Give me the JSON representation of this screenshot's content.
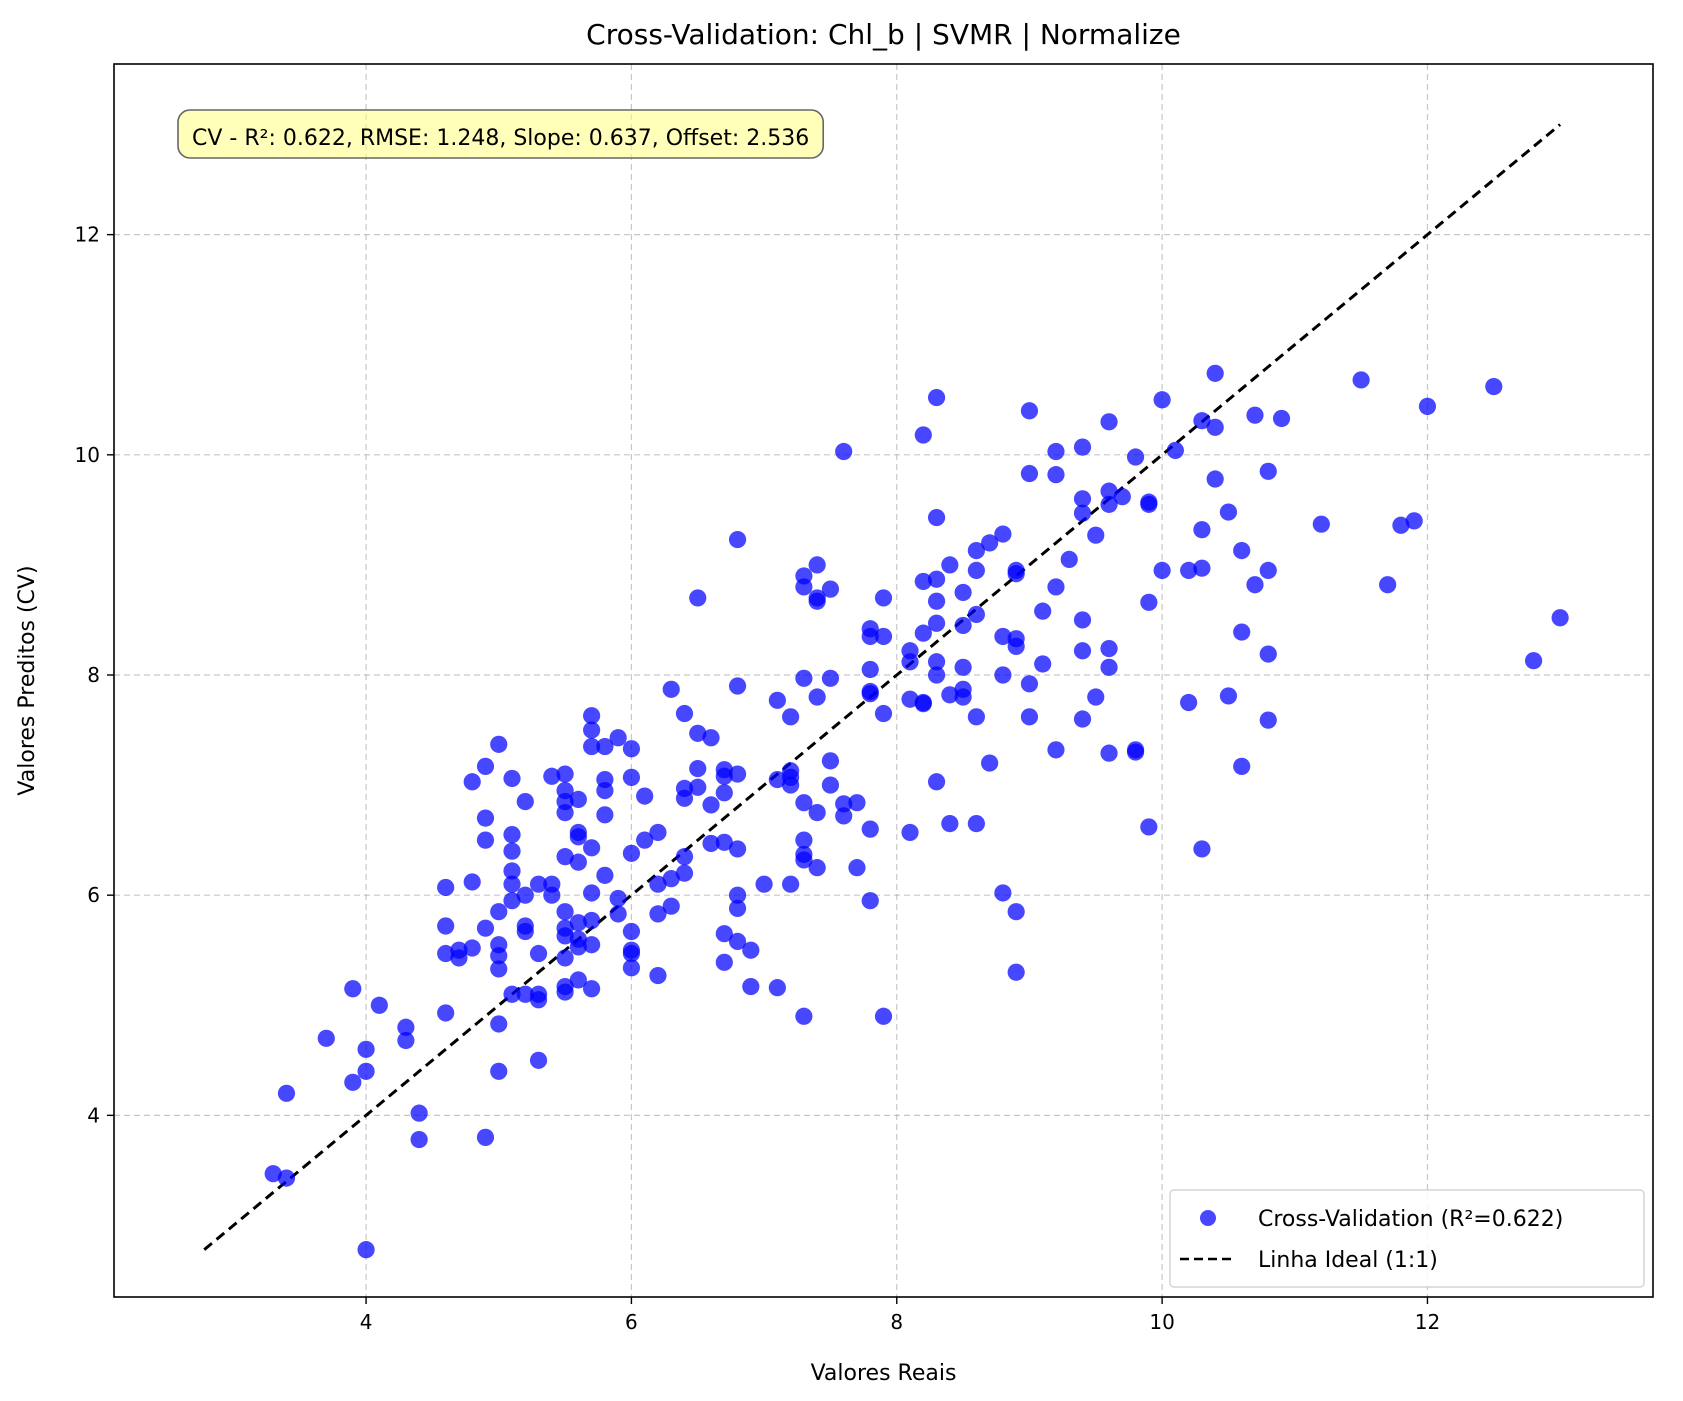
{
  "chart_data": {
    "type": "scatter",
    "title": "Cross-Validation: Chl_b | SVMR | Normalize",
    "xlabel": "Valores Reais",
    "ylabel": "Valores Preditos (CV)",
    "xlim": [
      2.1,
      13.7
    ],
    "ylim": [
      2.35,
      13.55
    ],
    "xticks": [
      4,
      6,
      8,
      10,
      12
    ],
    "yticks": [
      4,
      6,
      8,
      10,
      12
    ],
    "grid": true,
    "legend_position": "bottom-right",
    "stats_annotation": "CV - R²: 0.622, RMSE: 1.248, Slope: 0.637, Offset: 2.536",
    "stats_box_color": "#ffff80",
    "series": [
      {
        "name": "Cross-Validation (R²=0.622)",
        "kind": "scatter",
        "color": "#0000ff",
        "points": [
          [
            3.3,
            3.47
          ],
          [
            3.4,
            3.43
          ],
          [
            3.4,
            4.2
          ],
          [
            3.7,
            4.7
          ],
          [
            3.9,
            5.15
          ],
          [
            3.9,
            4.3
          ],
          [
            4.0,
            4.4
          ],
          [
            4.0,
            4.6
          ],
          [
            4.0,
            2.78
          ],
          [
            4.1,
            5.0
          ],
          [
            4.3,
            4.8
          ],
          [
            4.3,
            4.68
          ],
          [
            4.4,
            4.02
          ],
          [
            4.4,
            3.78
          ],
          [
            4.6,
            6.07
          ],
          [
            4.6,
            5.72
          ],
          [
            4.6,
            5.47
          ],
          [
            4.6,
            4.93
          ],
          [
            4.7,
            5.5
          ],
          [
            4.7,
            5.43
          ],
          [
            4.8,
            7.03
          ],
          [
            4.8,
            6.12
          ],
          [
            4.8,
            5.52
          ],
          [
            4.9,
            7.17
          ],
          [
            4.9,
            6.7
          ],
          [
            4.9,
            6.5
          ],
          [
            4.9,
            5.7
          ],
          [
            4.9,
            3.8
          ],
          [
            5.0,
            7.37
          ],
          [
            5.0,
            5.85
          ],
          [
            5.0,
            5.55
          ],
          [
            5.0,
            5.45
          ],
          [
            5.0,
            5.33
          ],
          [
            5.0,
            4.83
          ],
          [
            5.0,
            4.4
          ],
          [
            5.1,
            7.06
          ],
          [
            5.1,
            6.55
          ],
          [
            5.1,
            6.4
          ],
          [
            5.1,
            6.22
          ],
          [
            5.1,
            6.1
          ],
          [
            5.1,
            5.95
          ],
          [
            5.1,
            5.1
          ],
          [
            5.2,
            6.85
          ],
          [
            5.2,
            6.0
          ],
          [
            5.2,
            5.72
          ],
          [
            5.2,
            5.67
          ],
          [
            5.2,
            5.1
          ],
          [
            5.3,
            6.1
          ],
          [
            5.3,
            5.47
          ],
          [
            5.3,
            5.1
          ],
          [
            5.3,
            5.05
          ],
          [
            5.3,
            4.5
          ],
          [
            5.4,
            7.08
          ],
          [
            5.4,
            6.1
          ],
          [
            5.4,
            6.0
          ],
          [
            5.5,
            7.1
          ],
          [
            5.5,
            6.95
          ],
          [
            5.5,
            6.85
          ],
          [
            5.5,
            6.75
          ],
          [
            5.5,
            6.35
          ],
          [
            5.5,
            5.85
          ],
          [
            5.5,
            5.7
          ],
          [
            5.5,
            5.63
          ],
          [
            5.5,
            5.43
          ],
          [
            5.5,
            5.17
          ],
          [
            5.5,
            5.12
          ],
          [
            5.6,
            6.87
          ],
          [
            5.6,
            6.57
          ],
          [
            5.6,
            6.53
          ],
          [
            5.6,
            6.3
          ],
          [
            5.6,
            5.75
          ],
          [
            5.6,
            5.6
          ],
          [
            5.6,
            5.53
          ],
          [
            5.6,
            5.23
          ],
          [
            5.7,
            7.63
          ],
          [
            5.7,
            7.5
          ],
          [
            5.7,
            7.35
          ],
          [
            5.7,
            6.43
          ],
          [
            5.7,
            6.02
          ],
          [
            5.7,
            5.77
          ],
          [
            5.7,
            5.55
          ],
          [
            5.7,
            5.15
          ],
          [
            5.8,
            7.35
          ],
          [
            5.8,
            7.05
          ],
          [
            5.8,
            6.95
          ],
          [
            5.8,
            6.73
          ],
          [
            5.8,
            6.18
          ],
          [
            5.9,
            7.43
          ],
          [
            5.9,
            5.97
          ],
          [
            5.9,
            5.83
          ],
          [
            6.0,
            7.33
          ],
          [
            6.0,
            7.07
          ],
          [
            6.0,
            6.38
          ],
          [
            6.0,
            5.67
          ],
          [
            6.0,
            5.5
          ],
          [
            6.0,
            5.47
          ],
          [
            6.0,
            5.34
          ],
          [
            6.1,
            6.9
          ],
          [
            6.1,
            6.5
          ],
          [
            6.2,
            6.57
          ],
          [
            6.2,
            6.1
          ],
          [
            6.2,
            5.83
          ],
          [
            6.2,
            5.27
          ],
          [
            6.3,
            7.87
          ],
          [
            6.3,
            6.15
          ],
          [
            6.3,
            5.9
          ],
          [
            6.4,
            7.65
          ],
          [
            6.4,
            6.97
          ],
          [
            6.4,
            6.88
          ],
          [
            6.4,
            6.35
          ],
          [
            6.4,
            6.2
          ],
          [
            6.5,
            8.7
          ],
          [
            6.5,
            7.47
          ],
          [
            6.5,
            7.15
          ],
          [
            6.5,
            6.98
          ],
          [
            6.6,
            7.43
          ],
          [
            6.6,
            6.82
          ],
          [
            6.6,
            6.47
          ],
          [
            6.7,
            7.14
          ],
          [
            6.7,
            7.08
          ],
          [
            6.7,
            6.93
          ],
          [
            6.7,
            6.48
          ],
          [
            6.7,
            5.65
          ],
          [
            6.7,
            5.39
          ],
          [
            6.8,
            9.23
          ],
          [
            6.8,
            7.9
          ],
          [
            6.8,
            7.1
          ],
          [
            6.8,
            6.42
          ],
          [
            6.8,
            6.0
          ],
          [
            6.8,
            5.88
          ],
          [
            6.8,
            5.58
          ],
          [
            6.9,
            5.5
          ],
          [
            6.9,
            5.17
          ],
          [
            7.0,
            6.1
          ],
          [
            7.1,
            7.77
          ],
          [
            7.1,
            7.05
          ],
          [
            7.1,
            5.16
          ],
          [
            7.2,
            7.62
          ],
          [
            7.2,
            7.13
          ],
          [
            7.2,
            7.07
          ],
          [
            7.2,
            7.0
          ],
          [
            7.2,
            6.1
          ],
          [
            7.3,
            8.9
          ],
          [
            7.3,
            8.8
          ],
          [
            7.3,
            7.97
          ],
          [
            7.3,
            6.84
          ],
          [
            7.3,
            6.5
          ],
          [
            7.3,
            6.37
          ],
          [
            7.3,
            6.32
          ],
          [
            7.3,
            4.9
          ],
          [
            7.4,
            9.0
          ],
          [
            7.4,
            8.7
          ],
          [
            7.4,
            8.67
          ],
          [
            7.4,
            7.8
          ],
          [
            7.4,
            6.75
          ],
          [
            7.4,
            6.25
          ],
          [
            7.5,
            8.78
          ],
          [
            7.5,
            7.97
          ],
          [
            7.5,
            7.22
          ],
          [
            7.5,
            7.0
          ],
          [
            7.6,
            10.03
          ],
          [
            7.6,
            6.83
          ],
          [
            7.6,
            6.72
          ],
          [
            7.7,
            6.84
          ],
          [
            7.7,
            6.25
          ],
          [
            7.8,
            8.42
          ],
          [
            7.8,
            8.35
          ],
          [
            7.8,
            8.05
          ],
          [
            7.8,
            7.85
          ],
          [
            7.8,
            7.83
          ],
          [
            7.8,
            6.6
          ],
          [
            7.8,
            5.95
          ],
          [
            7.9,
            8.7
          ],
          [
            7.9,
            8.35
          ],
          [
            7.9,
            7.65
          ],
          [
            7.9,
            4.9
          ],
          [
            8.1,
            8.22
          ],
          [
            8.1,
            8.12
          ],
          [
            8.1,
            7.78
          ],
          [
            8.1,
            6.57
          ],
          [
            8.2,
            10.18
          ],
          [
            8.2,
            8.85
          ],
          [
            8.2,
            8.38
          ],
          [
            8.2,
            7.75
          ],
          [
            8.2,
            7.74
          ],
          [
            8.3,
            10.52
          ],
          [
            8.3,
            9.43
          ],
          [
            8.3,
            8.87
          ],
          [
            8.3,
            8.67
          ],
          [
            8.3,
            8.47
          ],
          [
            8.3,
            8.12
          ],
          [
            8.3,
            8.0
          ],
          [
            8.3,
            7.03
          ],
          [
            8.4,
            9.0
          ],
          [
            8.4,
            7.82
          ],
          [
            8.4,
            6.65
          ],
          [
            8.5,
            8.75
          ],
          [
            8.5,
            8.45
          ],
          [
            8.5,
            8.07
          ],
          [
            8.5,
            7.87
          ],
          [
            8.5,
            7.8
          ],
          [
            8.6,
            9.13
          ],
          [
            8.6,
            8.95
          ],
          [
            8.6,
            8.55
          ],
          [
            8.6,
            7.62
          ],
          [
            8.6,
            6.65
          ],
          [
            8.7,
            9.2
          ],
          [
            8.7,
            7.2
          ],
          [
            8.8,
            9.28
          ],
          [
            8.8,
            8.35
          ],
          [
            8.8,
            8.0
          ],
          [
            8.8,
            6.02
          ],
          [
            8.9,
            8.95
          ],
          [
            8.9,
            8.92
          ],
          [
            8.9,
            8.33
          ],
          [
            8.9,
            8.26
          ],
          [
            8.9,
            5.85
          ],
          [
            8.9,
            5.3
          ],
          [
            9.0,
            10.4
          ],
          [
            9.0,
            9.83
          ],
          [
            9.0,
            7.92
          ],
          [
            9.0,
            7.62
          ],
          [
            9.1,
            8.58
          ],
          [
            9.1,
            8.1
          ],
          [
            9.2,
            10.03
          ],
          [
            9.2,
            9.82
          ],
          [
            9.2,
            8.8
          ],
          [
            9.2,
            7.32
          ],
          [
            9.3,
            9.05
          ],
          [
            9.4,
            10.07
          ],
          [
            9.4,
            9.6
          ],
          [
            9.4,
            9.47
          ],
          [
            9.4,
            8.5
          ],
          [
            9.4,
            8.22
          ],
          [
            9.4,
            7.6
          ],
          [
            9.5,
            9.27
          ],
          [
            9.5,
            7.8
          ],
          [
            9.6,
            10.3
          ],
          [
            9.6,
            9.67
          ],
          [
            9.6,
            9.55
          ],
          [
            9.6,
            8.24
          ],
          [
            9.6,
            8.07
          ],
          [
            9.6,
            7.29
          ],
          [
            9.7,
            9.62
          ],
          [
            9.8,
            9.98
          ],
          [
            9.8,
            7.32
          ],
          [
            9.8,
            7.3
          ],
          [
            9.9,
            9.57
          ],
          [
            9.9,
            9.55
          ],
          [
            9.9,
            8.66
          ],
          [
            9.9,
            6.62
          ],
          [
            10.0,
            10.5
          ],
          [
            10.0,
            8.95
          ],
          [
            10.1,
            10.04
          ],
          [
            10.2,
            8.95
          ],
          [
            10.2,
            7.75
          ],
          [
            10.3,
            10.31
          ],
          [
            10.3,
            9.32
          ],
          [
            10.3,
            8.97
          ],
          [
            10.3,
            6.42
          ],
          [
            10.4,
            10.74
          ],
          [
            10.4,
            10.25
          ],
          [
            10.4,
            9.78
          ],
          [
            10.5,
            9.48
          ],
          [
            10.5,
            7.81
          ],
          [
            10.6,
            9.13
          ],
          [
            10.6,
            8.39
          ],
          [
            10.6,
            7.17
          ],
          [
            10.7,
            10.36
          ],
          [
            10.7,
            8.82
          ],
          [
            10.8,
            9.85
          ],
          [
            10.8,
            8.95
          ],
          [
            10.8,
            8.19
          ],
          [
            10.8,
            7.59
          ],
          [
            10.9,
            10.33
          ],
          [
            11.2,
            9.37
          ],
          [
            11.5,
            10.68
          ],
          [
            11.7,
            8.82
          ],
          [
            11.8,
            9.36
          ],
          [
            11.9,
            9.4
          ],
          [
            12.0,
            10.44
          ],
          [
            12.5,
            10.62
          ],
          [
            12.8,
            8.13
          ],
          [
            13.0,
            8.52
          ]
        ]
      },
      {
        "name": "Linha Ideal (1:1)",
        "kind": "line",
        "color": "#000000",
        "dashed": true,
        "x": [
          2.78,
          13.0
        ],
        "y": [
          2.78,
          13.0
        ]
      }
    ]
  }
}
